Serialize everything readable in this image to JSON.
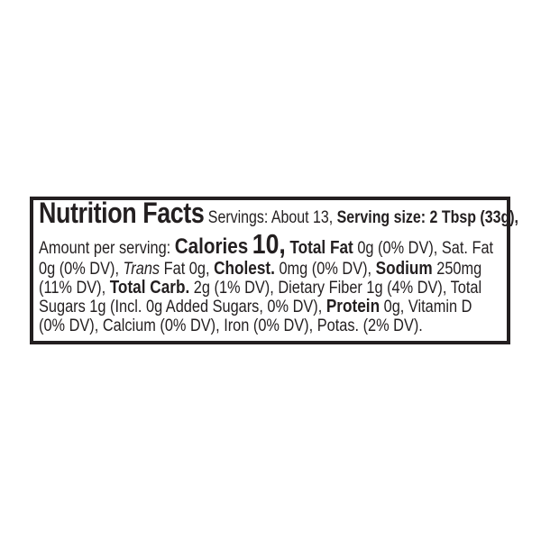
{
  "title": "Nutrition Facts",
  "servings": "Servings: About 13,",
  "serving_size": "Serving size: 2 Tbsp (33g),",
  "amount_per_serving": "Amount per serving:",
  "calories_label": "Calories",
  "calories_value": "10,",
  "total_fat_label": "Total Fat",
  "total_fat_value": "0g (0% DV), Sat. Fat",
  "sat_fat_value": "0g (0% DV),",
  "trans_label": "Trans",
  "trans_value": "Fat 0g,",
  "cholest_label": "Cholest.",
  "cholest_value": "0mg (0% DV),",
  "sodium_label": "Sodium",
  "sodium_value": "250mg",
  "sodium_dv": "(11% DV),",
  "carb_label": "Total Carb.",
  "carb_value": "2g (1% DV), Dietary Fiber 1g (4% DV), Total",
  "sugars_value": "Sugars 1g (Incl. 0g Added Sugars, 0% DV),",
  "protein_label": "Protein",
  "protein_value": "0g, Vitamin D",
  "line6": "(0% DV), Calcium (0% DV), Iron (0% DV), Potas. (2% DV)."
}
